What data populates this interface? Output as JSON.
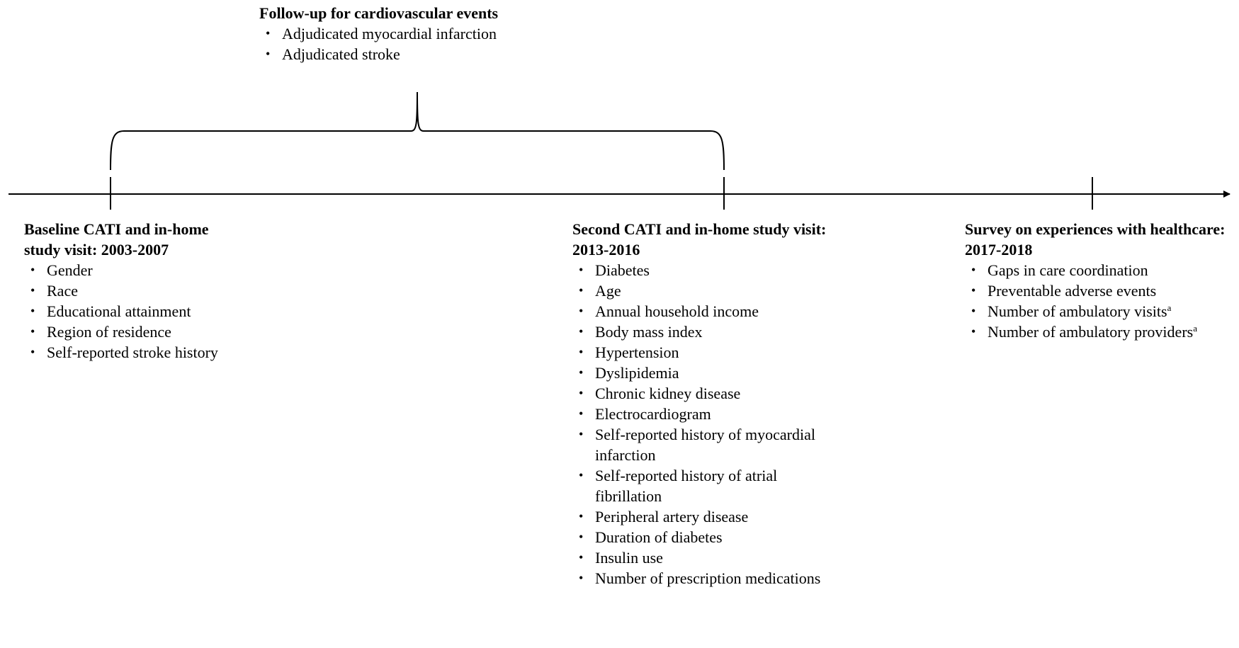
{
  "followup": {
    "title": "Follow-up for cardiovascular events",
    "items": [
      "Adjudicated myocardial infarction",
      "Adjudicated stroke"
    ]
  },
  "baseline": {
    "title": "Baseline CATI and in-home study visit: 2003-2007",
    "items": [
      "Gender",
      "Race",
      "Educational attainment",
      "Region of residence",
      "Self-reported stroke history"
    ]
  },
  "second": {
    "title": "Second CATI and in-home study visit: 2013-2016",
    "items": [
      "Diabetes",
      "Age",
      "Annual household income",
      "Body mass index",
      "Hypertension",
      "Dyslipidemia",
      "Chronic kidney disease",
      "Electrocardiogram",
      "Self-reported history of myocardial infarction",
      "Self-reported history of atrial fibrillation",
      "Peripheral artery disease",
      "Duration of diabetes",
      "Insulin use",
      "Number of prescription medications"
    ]
  },
  "survey": {
    "title": "Survey on experiences with healthcare: 2017-2018",
    "items": [
      {
        "text": "Gaps in care coordination",
        "sup": ""
      },
      {
        "text": "Preventable adverse events",
        "sup": ""
      },
      {
        "text": "Number of ambulatory visits",
        "sup": "a"
      },
      {
        "text": "Number of ambulatory providers",
        "sup": "a"
      }
    ]
  },
  "bullet_glyph": "•"
}
